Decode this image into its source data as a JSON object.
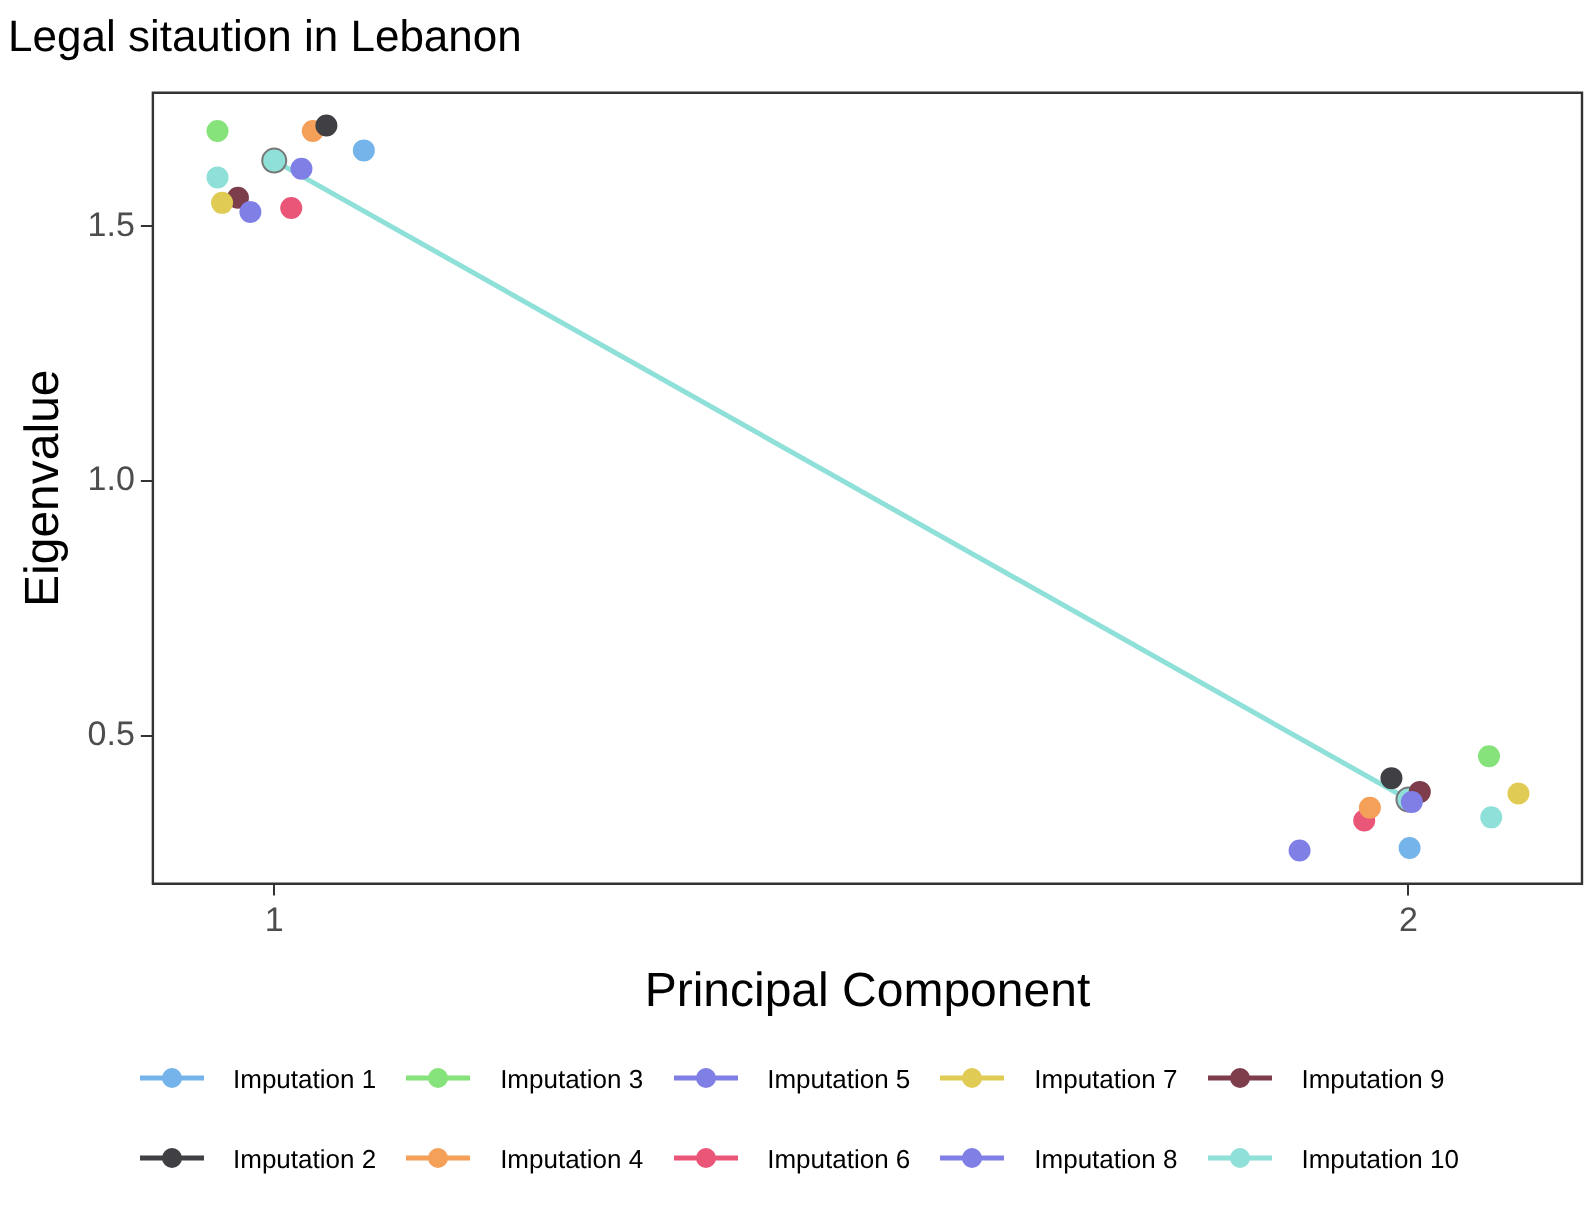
{
  "chart_data": {
    "type": "scatter",
    "title": "Legal sitaution in Lebanon",
    "xlabel": "Principal Component",
    "ylabel": "Eigenvalue",
    "xlim": [
      0.893,
      2.153
    ],
    "xticks": [
      1,
      2
    ],
    "ylim": [
      0.21,
      1.762
    ],
    "yticks": [
      {
        "value": 0.5,
        "label": "0.5"
      },
      {
        "value": 1,
        "label": "1.0"
      },
      {
        "value": 1.5,
        "label": "1.5"
      }
    ],
    "grid": false,
    "legend": "bottom",
    "marker": "circle",
    "series": [
      {
        "name": "Imputation 1",
        "color": "#74b4ea",
        "x": [
          1.079,
          2.001
        ],
        "values": [
          1.649,
          0.28
        ]
      },
      {
        "name": "Imputation 2",
        "color": "#3f3f44",
        "x": [
          1.046,
          1.985
        ],
        "values": [
          1.698,
          0.417
        ]
      },
      {
        "name": "Imputation 3",
        "color": "#86e27a",
        "x": [
          0.95,
          2.071
        ],
        "values": [
          1.687,
          0.46
        ]
      },
      {
        "name": "Imputation 4",
        "color": "#f4a058",
        "x": [
          1.034,
          1.966
        ],
        "values": [
          1.687,
          0.359
        ]
      },
      {
        "name": "Imputation 5",
        "color": "#7f7fe6",
        "x": [
          1.024,
          2.003
        ],
        "values": [
          1.613,
          0.37
        ]
      },
      {
        "name": "Imputation 6",
        "color": "#ea5678",
        "x": [
          1.015,
          1.961
        ],
        "values": [
          1.536,
          0.334
        ]
      },
      {
        "name": "Imputation 7",
        "color": "#e0cc55",
        "x": [
          0.954,
          2.097
        ],
        "values": [
          1.546,
          0.387
        ]
      },
      {
        "name": "Imputation 8",
        "color": "#7f7fe6",
        "x": [
          0.979,
          1.904
        ],
        "values": [
          1.528,
          0.275
        ]
      },
      {
        "name": "Imputation 9",
        "color": "#7d3d4b",
        "x": [
          0.968,
          2.01
        ],
        "values": [
          1.556,
          0.39
        ]
      },
      {
        "name": "Imputation 10",
        "color": "#8ee0d8",
        "x": [
          0.95,
          2.073
        ],
        "values": [
          1.596,
          0.34
        ]
      },
      {
        "type": "line",
        "color": "#8ee0d8",
        "x": [
          1,
          2
        ],
        "values": [
          1.629,
          0.375
        ]
      }
    ]
  }
}
